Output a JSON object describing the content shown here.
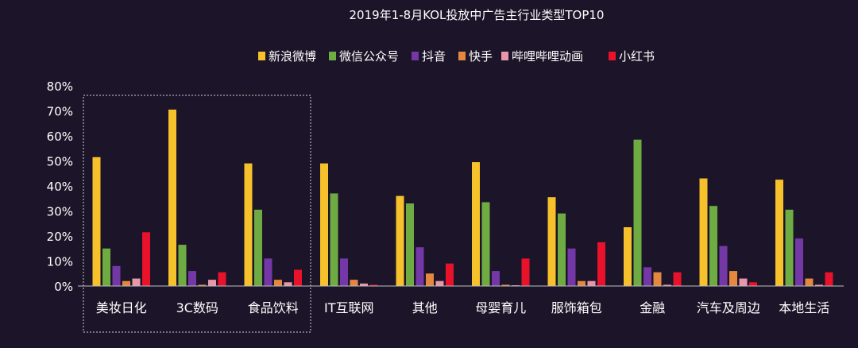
{
  "chart_data": {
    "type": "bar",
    "title": "2019年1-8月KOL投放中广告主行业类型TOP10",
    "xlabel": "",
    "ylabel": "",
    "ylim": [
      0,
      80
    ],
    "yticks": [
      0,
      10,
      20,
      30,
      40,
      50,
      60,
      70,
      80
    ],
    "ytick_labels": [
      "0%",
      "10%",
      "20%",
      "30%",
      "40%",
      "50%",
      "60%",
      "70%",
      "80%"
    ],
    "grid": false,
    "legend_position": "top-center",
    "categories": [
      "美妆日化",
      "3C数码",
      "食品饮料",
      "IT互联网",
      "其他",
      "母婴育儿",
      "服饰箱包",
      "金融",
      "汽车及周边",
      "本地生活"
    ],
    "highlighted_categories": [
      "美妆日化",
      "3C数码",
      "食品饮料"
    ],
    "series": [
      {
        "name": "新浪微博",
        "color": "#f6c12b",
        "values": [
          51.5,
          70.5,
          49,
          49,
          36,
          49.5,
          35.5,
          23.5,
          43,
          42.5
        ]
      },
      {
        "name": "微信公众号",
        "color": "#6eab42",
        "values": [
          15,
          16.5,
          30.5,
          37,
          33,
          33.5,
          29,
          58.5,
          32,
          30.5
        ]
      },
      {
        "name": "抖音",
        "color": "#7437a6",
        "values": [
          8,
          6,
          11,
          11,
          15.5,
          6,
          15,
          7.5,
          16,
          19
        ]
      },
      {
        "name": "快手",
        "color": "#e4873f",
        "values": [
          2,
          0.5,
          2.5,
          2.5,
          5,
          0.5,
          2,
          5.5,
          6,
          3
        ]
      },
      {
        "name": "哔哩哔哩动画",
        "color": "#e896a9",
        "values": [
          3,
          2.5,
          1.5,
          1,
          2,
          0.3,
          2,
          0.5,
          3,
          0.5
        ]
      },
      {
        "name": "小红书",
        "color": "#e8122a",
        "values": [
          21.5,
          5.5,
          6.5,
          0.5,
          9,
          11,
          17.5,
          5.5,
          1.5,
          5.5
        ]
      }
    ]
  }
}
